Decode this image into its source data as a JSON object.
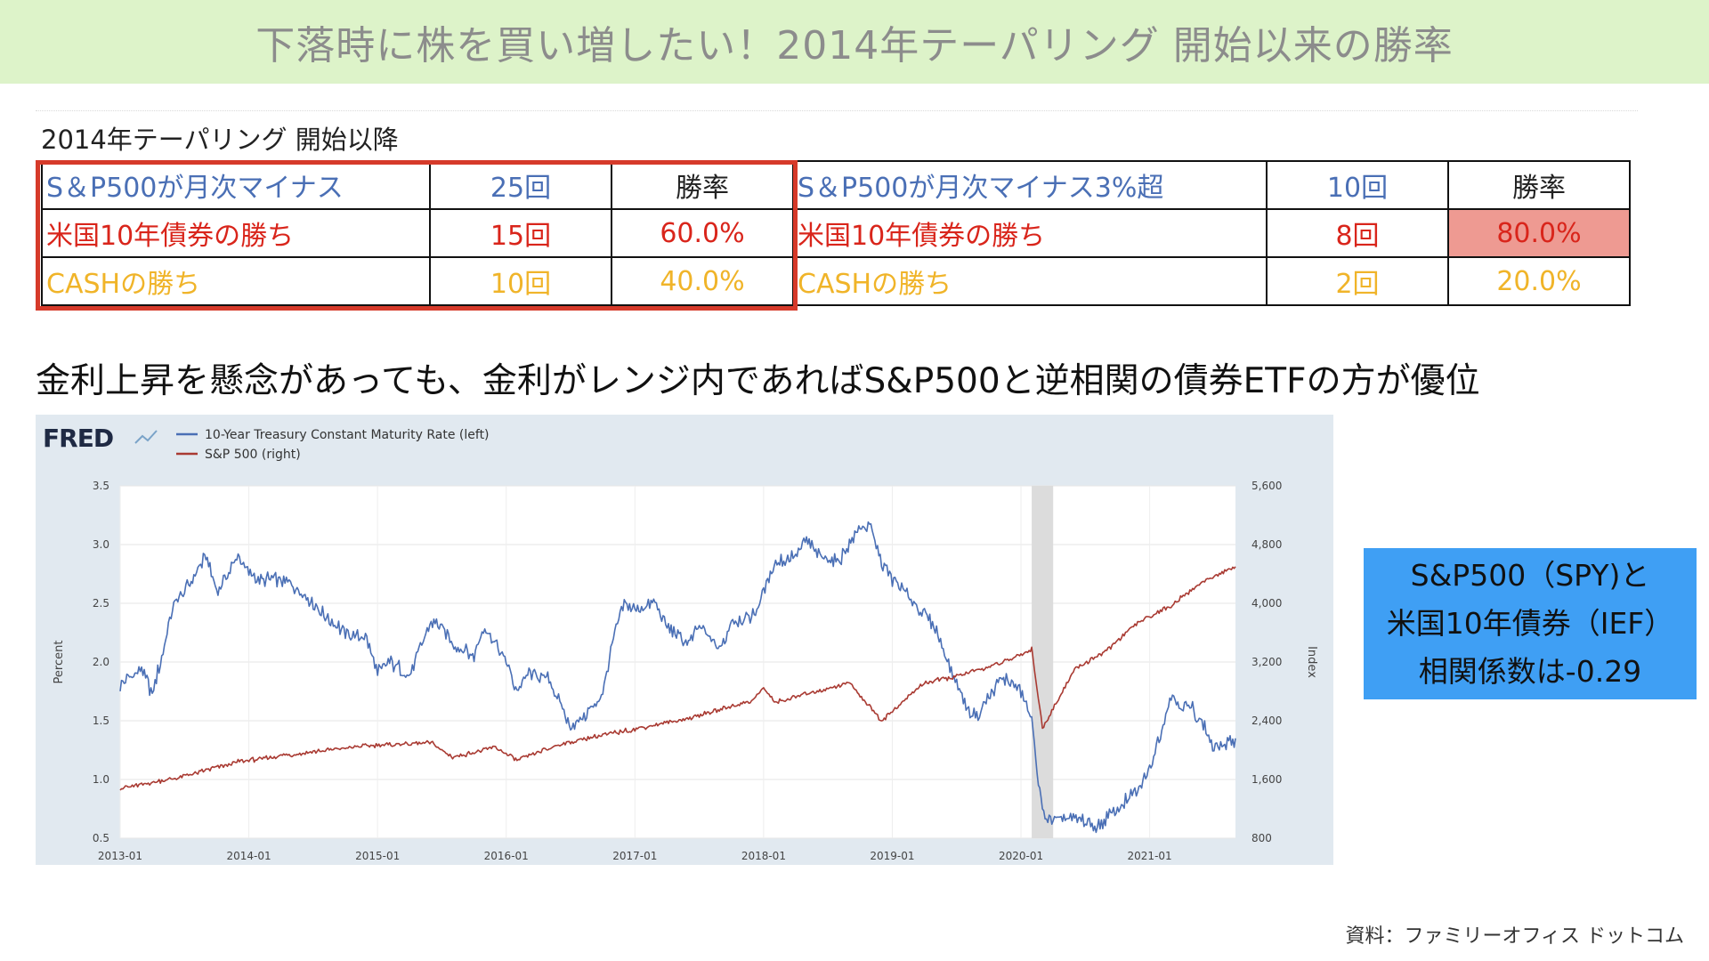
{
  "banner": {
    "title": "下落時に株を買い増したい！2014年テーパリング 開始以来の勝率"
  },
  "table": {
    "caption": "2014年テーパリング 開始以降",
    "left": {
      "row1": {
        "label": "S＆P500が月次マイナス",
        "count": "25回",
        "rate": "勝率"
      },
      "row2": {
        "label": "米国10年債券の勝ち",
        "count": "15回",
        "rate": "60.0%"
      },
      "row3": {
        "label": "CASHの勝ち",
        "count": "10回",
        "rate": "40.0%"
      }
    },
    "right": {
      "row1": {
        "label": "S＆P500が月次マイナス3%超",
        "count": "10回",
        "rate": "勝率"
      },
      "row2": {
        "label": "米国10年債券の勝ち",
        "count": "8回",
        "rate": "80.0%"
      },
      "row3": {
        "label": "CASHの勝ち",
        "count": "2回",
        "rate": "20.0%"
      }
    }
  },
  "statement": "金利上昇を懸念があっても、金利がレンジ内であればS&P500と逆相関の債券ETFの方が優位",
  "callout": {
    "line1": "S&P500（SPY)と",
    "line2": "米国10年債券（IEF）",
    "line3": "相関係数は-0.29"
  },
  "source": "資料：ファミリーオフィス ドットコム",
  "colors": {
    "banner_bg": "#ddf3c9",
    "blue_text": "#4a6fb5",
    "red_text": "#d9251b",
    "yellow_text": "#f0b429",
    "highlight_cell": "#ee9a92",
    "callout_bg": "#3f9ff4",
    "treasury_line": "#4a6fb5",
    "sp500_line": "#a93a32",
    "recession_band": "#dcdcdc"
  },
  "chart_data": {
    "type": "line",
    "brand": "FRED",
    "legend": [
      "10-Year Treasury Constant Maturity Rate (left)",
      "S&P 500 (right)"
    ],
    "legend_placement": "top-left",
    "ylabel_left": "Percent",
    "ylabel_right": "Index",
    "ylim_left": [
      0.5,
      3.5
    ],
    "ylim_right": [
      800,
      5600
    ],
    "yticks_left": [
      "0.5",
      "1.0",
      "1.5",
      "2.0",
      "2.5",
      "3.0",
      "3.5"
    ],
    "yticks_right": [
      "800",
      "1,600",
      "2,400",
      "3,200",
      "4,000",
      "4,800",
      "5,600"
    ],
    "xlim": [
      "2013-01",
      "2021-09"
    ],
    "xticks": [
      "2013-01",
      "2014-01",
      "2015-01",
      "2016-01",
      "2017-01",
      "2018-01",
      "2019-01",
      "2020-01",
      "2021-01"
    ],
    "shaded_period": [
      "2020-02",
      "2020-04"
    ],
    "grid": true,
    "series": [
      {
        "name": "10-Year Treasury Constant Maturity Rate (left)",
        "axis": "left",
        "points": [
          [
            "2013-01",
            1.8
          ],
          [
            "2013-03",
            1.95
          ],
          [
            "2013-04",
            1.72
          ],
          [
            "2013-05",
            2.1
          ],
          [
            "2013-06",
            2.5
          ],
          [
            "2013-07",
            2.6
          ],
          [
            "2013-09",
            2.9
          ],
          [
            "2013-10",
            2.6
          ],
          [
            "2013-12",
            2.9
          ],
          [
            "2014-01",
            2.75
          ],
          [
            "2014-02",
            2.7
          ],
          [
            "2014-04",
            2.7
          ],
          [
            "2014-06",
            2.6
          ],
          [
            "2014-08",
            2.4
          ],
          [
            "2014-10",
            2.25
          ],
          [
            "2014-12",
            2.2
          ],
          [
            "2015-01",
            1.9
          ],
          [
            "2015-02",
            2.0
          ],
          [
            "2015-03",
            1.95
          ],
          [
            "2015-04",
            1.9
          ],
          [
            "2015-06",
            2.35
          ],
          [
            "2015-07",
            2.3
          ],
          [
            "2015-08",
            2.15
          ],
          [
            "2015-10",
            2.05
          ],
          [
            "2015-11",
            2.3
          ],
          [
            "2016-01",
            2.0
          ],
          [
            "2016-02",
            1.75
          ],
          [
            "2016-03",
            1.9
          ],
          [
            "2016-05",
            1.85
          ],
          [
            "2016-07",
            1.45
          ],
          [
            "2016-09",
            1.6
          ],
          [
            "2016-10",
            1.75
          ],
          [
            "2016-11",
            2.2
          ],
          [
            "2016-12",
            2.5
          ],
          [
            "2017-01",
            2.45
          ],
          [
            "2017-03",
            2.5
          ],
          [
            "2017-04",
            2.3
          ],
          [
            "2017-06",
            2.15
          ],
          [
            "2017-07",
            2.3
          ],
          [
            "2017-09",
            2.1
          ],
          [
            "2017-10",
            2.35
          ],
          [
            "2017-12",
            2.4
          ],
          [
            "2018-01",
            2.6
          ],
          [
            "2018-02",
            2.85
          ],
          [
            "2018-04",
            2.9
          ],
          [
            "2018-05",
            3.05
          ],
          [
            "2018-06",
            2.9
          ],
          [
            "2018-08",
            2.85
          ],
          [
            "2018-10",
            3.15
          ],
          [
            "2018-11",
            3.15
          ],
          [
            "2018-12",
            2.85
          ],
          [
            "2019-01",
            2.7
          ],
          [
            "2019-03",
            2.5
          ],
          [
            "2019-05",
            2.3
          ],
          [
            "2019-06",
            2.05
          ],
          [
            "2019-08",
            1.6
          ],
          [
            "2019-09",
            1.55
          ],
          [
            "2019-10",
            1.7
          ],
          [
            "2019-11",
            1.85
          ],
          [
            "2019-12",
            1.85
          ],
          [
            "2020-01",
            1.75
          ],
          [
            "2020-02",
            1.5
          ],
          [
            "2020-03",
            0.7
          ],
          [
            "2020-04",
            0.65
          ],
          [
            "2020-06",
            0.68
          ],
          [
            "2020-08",
            0.6
          ],
          [
            "2020-10",
            0.75
          ],
          [
            "2020-12",
            0.92
          ],
          [
            "2021-01",
            1.1
          ],
          [
            "2021-02",
            1.4
          ],
          [
            "2021-03",
            1.72
          ],
          [
            "2021-04",
            1.63
          ],
          [
            "2021-05",
            1.6
          ],
          [
            "2021-06",
            1.48
          ],
          [
            "2021-07",
            1.25
          ],
          [
            "2021-08",
            1.3
          ],
          [
            "2021-09",
            1.35
          ]
        ]
      },
      {
        "name": "S&P 500 (right)",
        "axis": "right",
        "points": [
          [
            "2013-01",
            1480
          ],
          [
            "2013-06",
            1610
          ],
          [
            "2013-12",
            1840
          ],
          [
            "2014-06",
            1960
          ],
          [
            "2014-12",
            2060
          ],
          [
            "2015-06",
            2100
          ],
          [
            "2015-08",
            1900
          ],
          [
            "2015-12",
            2040
          ],
          [
            "2016-02",
            1860
          ],
          [
            "2016-06",
            2080
          ],
          [
            "2016-12",
            2260
          ],
          [
            "2017-06",
            2430
          ],
          [
            "2017-12",
            2680
          ],
          [
            "2018-01",
            2850
          ],
          [
            "2018-02",
            2650
          ],
          [
            "2018-09",
            2920
          ],
          [
            "2018-12",
            2400
          ],
          [
            "2019-04",
            2920
          ],
          [
            "2019-07",
            3000
          ],
          [
            "2019-12",
            3230
          ],
          [
            "2020-02",
            3380
          ],
          [
            "2020-03",
            2300
          ],
          [
            "2020-06",
            3100
          ],
          [
            "2020-09",
            3360
          ],
          [
            "2020-12",
            3750
          ],
          [
            "2021-03",
            3970
          ],
          [
            "2021-06",
            4300
          ],
          [
            "2021-09",
            4500
          ]
        ]
      }
    ]
  }
}
